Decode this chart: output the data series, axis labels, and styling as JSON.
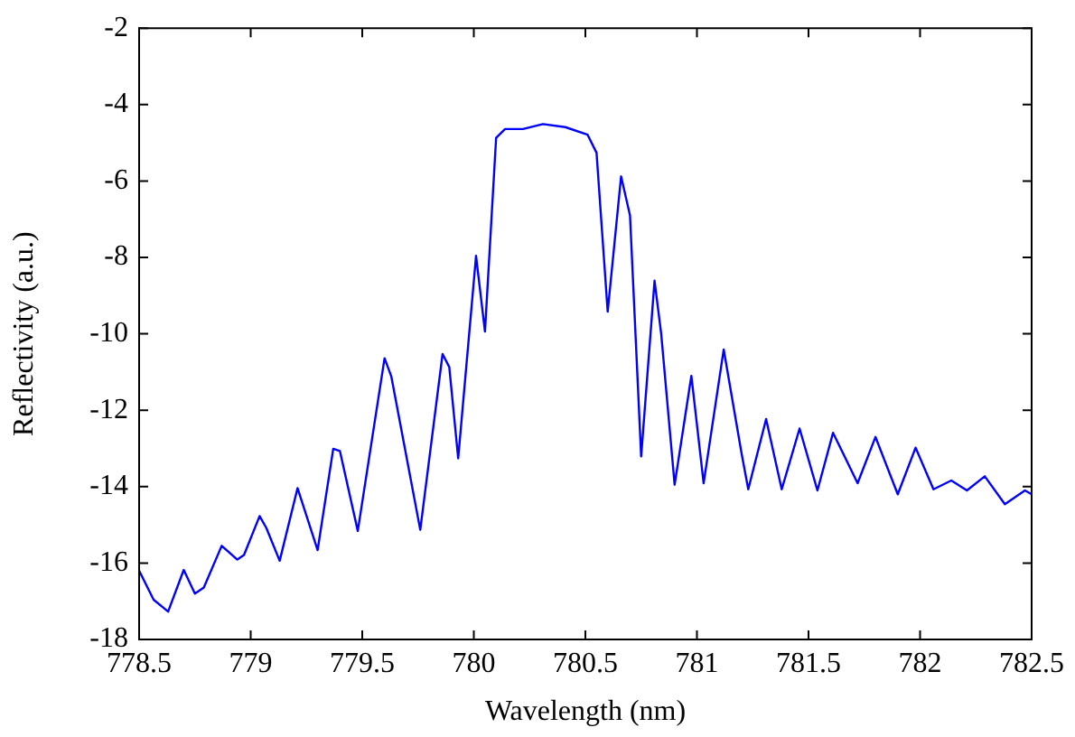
{
  "chart_data": {
    "type": "line",
    "xlabel": "Wavelength (nm)",
    "ylabel": "Reflectivity (a.u.)",
    "xlim": [
      778.5,
      782.5
    ],
    "xticks": [
      778.5,
      779,
      779.5,
      780,
      780.5,
      781,
      781.5,
      782,
      782.5
    ],
    "ylim": [
      -18,
      -2
    ],
    "yticks": [
      -18,
      -16,
      -14,
      -12,
      -10,
      -8,
      -6,
      -4,
      -2
    ],
    "grid": false,
    "legend": false,
    "marker": "none",
    "line_style": "solid",
    "series": [
      {
        "color": "#0000ff",
        "x": [
          778.5,
          778.565,
          778.63,
          778.7,
          778.75,
          778.79,
          778.87,
          778.94,
          778.97,
          779.04,
          779.07,
          779.13,
          779.21,
          779.3,
          779.37,
          779.4,
          779.48,
          779.6,
          779.63,
          779.76,
          779.86,
          779.89,
          779.93,
          780.01,
          780.05,
          780.1,
          780.14,
          780.22,
          780.31,
          780.41,
          780.51,
          780.55,
          780.6,
          780.66,
          780.7,
          780.75,
          780.81,
          780.84,
          780.9,
          780.975,
          781.03,
          781.12,
          781.2,
          781.23,
          781.31,
          781.38,
          781.46,
          781.54,
          781.61,
          781.72,
          781.8,
          781.9,
          781.98,
          782.06,
          782.14,
          782.21,
          782.29,
          782.38,
          782.47,
          782.5
        ],
        "values": [
          -16.2,
          -16.96,
          -17.27,
          -16.18,
          -16.8,
          -16.64,
          -15.55,
          -15.91,
          -15.79,
          -14.77,
          -15.08,
          -15.94,
          -14.04,
          -15.66,
          -13.01,
          -13.07,
          -15.16,
          -10.64,
          -11.11,
          -15.13,
          -10.53,
          -10.87,
          -13.26,
          -7.96,
          -9.94,
          -4.87,
          -4.64,
          -4.64,
          -4.51,
          -4.59,
          -4.79,
          -5.26,
          -9.42,
          -5.88,
          -6.9,
          -13.21,
          -8.61,
          -10.01,
          -13.95,
          -11.1,
          -13.91,
          -10.41,
          -13.13,
          -14.07,
          -12.23,
          -14.07,
          -12.48,
          -14.1,
          -12.59,
          -13.91,
          -12.7,
          -14.2,
          -12.98,
          -14.07,
          -13.84,
          -14.1,
          -13.73,
          -14.46,
          -14.1,
          -14.2
        ]
      }
    ]
  }
}
